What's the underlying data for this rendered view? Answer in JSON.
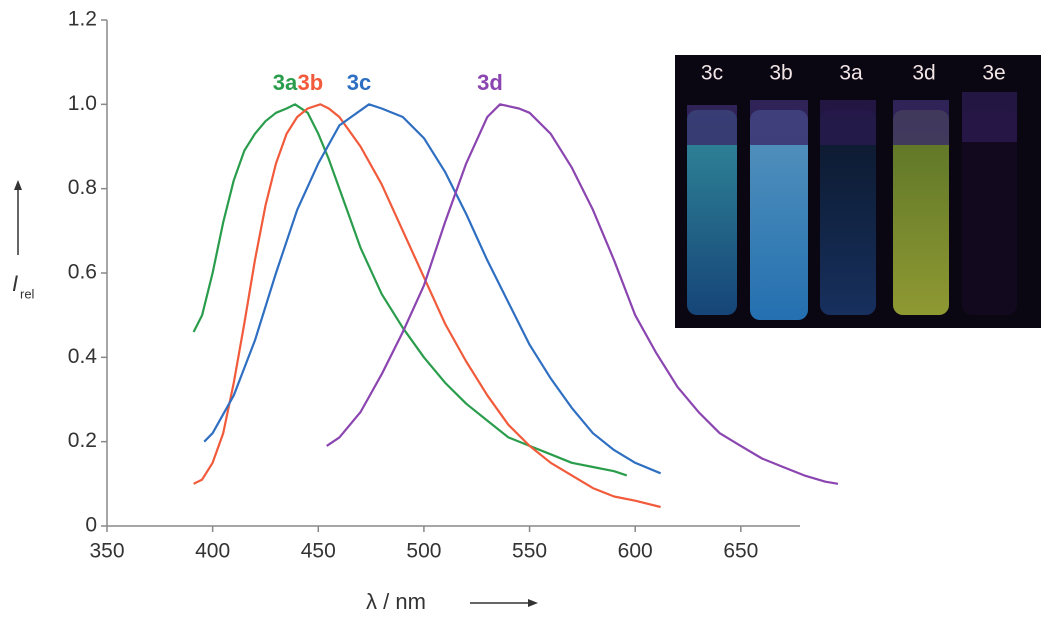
{
  "chart_data": {
    "type": "line",
    "x_label": "λ / nm",
    "y_label": "I",
    "y_label_sub": "rel",
    "xlim": [
      350,
      678
    ],
    "xticks": [
      350,
      400,
      450,
      500,
      550,
      600,
      650
    ],
    "ylim": [
      0,
      1.2
    ],
    "yticks": [
      0,
      0.2,
      0.4,
      0.6,
      0.8,
      {
        "value": 1,
        "label": "1.0"
      },
      1.2
    ],
    "grid": false,
    "series": [
      {
        "name": "3a",
        "color": "#2a9d4c",
        "x": [
          391,
          395,
          400,
          405,
          410,
          415,
          420,
          425,
          430,
          435,
          439,
          445,
          450,
          455,
          460,
          465,
          470,
          480,
          490,
          500,
          510,
          520,
          530,
          540,
          550,
          560,
          570,
          580,
          590,
          596
        ],
        "values": [
          0.46,
          0.5,
          0.6,
          0.72,
          0.82,
          0.89,
          0.93,
          0.96,
          0.98,
          0.99,
          1.0,
          0.98,
          0.93,
          0.87,
          0.8,
          0.73,
          0.66,
          0.55,
          0.47,
          0.4,
          0.34,
          0.29,
          0.25,
          0.21,
          0.19,
          0.17,
          0.15,
          0.14,
          0.13,
          0.12
        ]
      },
      {
        "name": "3b",
        "color": "#f15a3a",
        "x": [
          391,
          395,
          400,
          405,
          410,
          415,
          420,
          425,
          430,
          435,
          440,
          445,
          451,
          455,
          460,
          470,
          480,
          490,
          500,
          510,
          520,
          530,
          540,
          550,
          560,
          570,
          580,
          590,
          600,
          612
        ],
        "values": [
          0.1,
          0.11,
          0.15,
          0.22,
          0.34,
          0.48,
          0.63,
          0.76,
          0.86,
          0.93,
          0.97,
          0.99,
          1.0,
          0.99,
          0.97,
          0.9,
          0.81,
          0.7,
          0.59,
          0.48,
          0.39,
          0.31,
          0.24,
          0.19,
          0.15,
          0.12,
          0.09,
          0.07,
          0.06,
          0.045
        ]
      },
      {
        "name": "3c",
        "color": "#2f6fc2",
        "x": [
          396,
          400,
          410,
          420,
          430,
          440,
          450,
          460,
          474,
          480,
          490,
          500,
          510,
          520,
          530,
          540,
          550,
          560,
          570,
          580,
          590,
          600,
          612
        ],
        "values": [
          0.2,
          0.22,
          0.31,
          0.44,
          0.6,
          0.75,
          0.86,
          0.95,
          1.0,
          0.99,
          0.97,
          0.92,
          0.84,
          0.74,
          0.63,
          0.53,
          0.43,
          0.35,
          0.28,
          0.22,
          0.18,
          0.15,
          0.125
        ]
      },
      {
        "name": "3d",
        "color": "#8b45b0",
        "x": [
          454,
          460,
          470,
          480,
          490,
          500,
          510,
          520,
          530,
          536,
          545,
          550,
          560,
          570,
          580,
          590,
          600,
          610,
          620,
          630,
          640,
          650,
          660,
          670,
          680,
          690,
          696
        ],
        "values": [
          0.19,
          0.21,
          0.27,
          0.36,
          0.46,
          0.57,
          0.72,
          0.86,
          0.97,
          1.0,
          0.99,
          0.98,
          0.93,
          0.85,
          0.75,
          0.63,
          0.5,
          0.41,
          0.33,
          0.27,
          0.22,
          0.19,
          0.16,
          0.14,
          0.12,
          0.105,
          0.1
        ]
      }
    ],
    "inset_labels": [
      "3c",
      "3b",
      "3a",
      "3d",
      "3e"
    ]
  }
}
